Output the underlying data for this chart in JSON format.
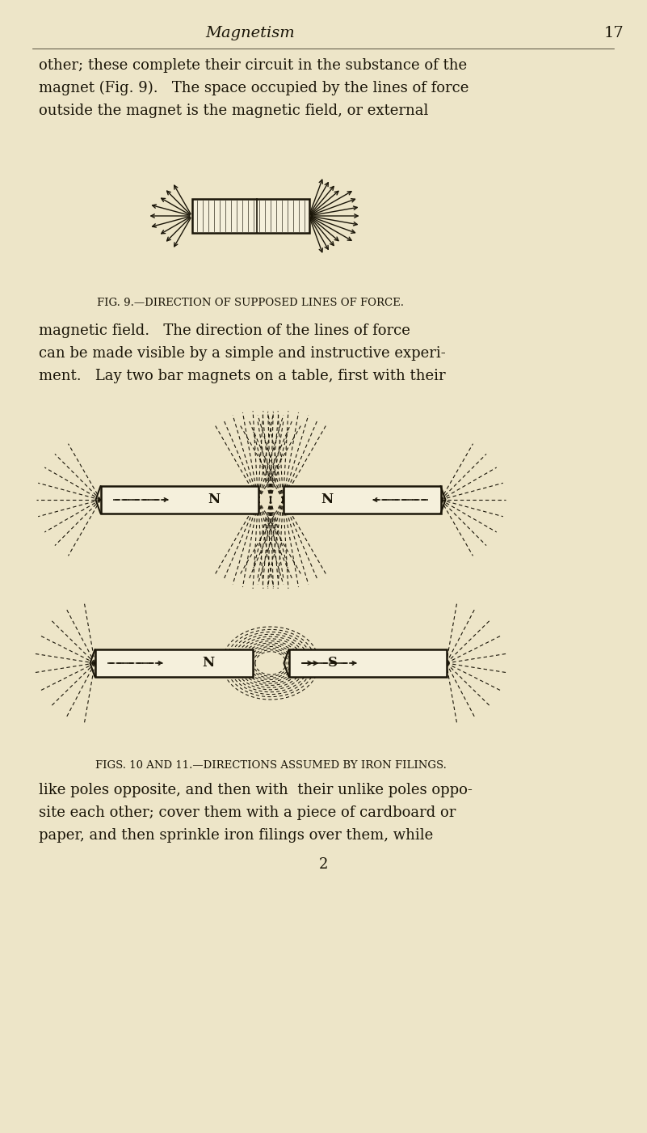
{
  "bg_color": "#ede5c8",
  "text_color": "#1a1508",
  "page_title": "Magnetism",
  "page_number": "17",
  "para1_lines": [
    "other; these complete their circuit in the substance of the",
    "magnet (Fig. 9).   The space occupied by the lines of force",
    "outside the magnet is the magnetic field, or external"
  ],
  "fig9_caption_small": "FIG. 9.—DIRECTION OF SUPPOSED LINES OF FORCE.",
  "para2_lines": [
    "magnetic field.   The direction of the lines of force",
    "can be made visible by a simple and instructive experi-",
    "ment.   Lay two bar magnets on a table, first with their"
  ],
  "fig1011_caption": "FIGS. 10 AND 11.—DIRECTIONS ASSUMED BY IRON FILINGS.",
  "para3_lines": [
    "like poles opposite, and then with  their unlike poles oppo-",
    "site each other; cover them with a piece of cardboard or",
    "paper, and then sprinkle iron filings over them, while"
  ],
  "page_num_bottom": "2",
  "lc": "#1a1508",
  "magnet_face": "#f5f0dc",
  "line_lw": 0.75
}
